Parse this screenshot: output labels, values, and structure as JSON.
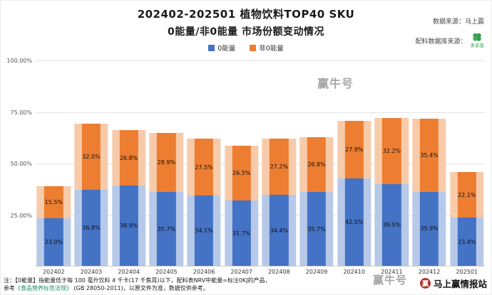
{
  "header": {
    "title_line1": "202402-202501 植物饮料TOP40 SKU",
    "title_line2": "0能量/非0能量 市场份额变动情况",
    "source_line1": "数据来源：马上赢",
    "source_line2": "配料数据库来源：",
    "source_logo_text": "多安普"
  },
  "chart_data": {
    "type": "bar",
    "stacked": true,
    "title": "202402-202501 植物饮料TOP40 SKU 0能量/非0能量 市场份额变动情况",
    "xlabel": "",
    "ylabel": "",
    "ylim": [
      0,
      100
    ],
    "grid": true,
    "legend_position": "top",
    "yticks": [
      "100.00%",
      "75.00%",
      "50.00%",
      "25.00%"
    ],
    "categories": [
      "202402",
      "202403",
      "202404",
      "202405",
      "202406",
      "202407",
      "202408",
      "202409",
      "202410",
      "202411",
      "202412",
      "202501"
    ],
    "series": [
      {
        "name": "0能量",
        "color": "#4472c4",
        "light_color": "#b7c9e8",
        "values": [
          23.0,
          36.8,
          38.9,
          35.7,
          34.1,
          31.7,
          34.4,
          35.7,
          42.5,
          39.5,
          35.9,
          23.4
        ]
      },
      {
        "name": "非0能量",
        "color": "#ed7d31",
        "light_color": "#f7cba9",
        "values": [
          15.5,
          32.0,
          26.8,
          28.9,
          27.5,
          26.5,
          27.2,
          26.8,
          27.9,
          32.2,
          35.4,
          22.1
        ]
      }
    ]
  },
  "footer": {
    "note_line1": "注：【0能量】指能量低于每 100 毫升饮料 4 千卡(17 千焦耳)以下，配料表NRV中能量=标注0KJ的产品，",
    "note_line2_prefix": "参考",
    "note_line2_link": "《食品营养标签法规》",
    "note_line2_suffix": " (GB 28050-2011)，以原文件为准，数据仅供参考。"
  },
  "watermark": {
    "text": "赢牛号"
  },
  "brand": {
    "name": "马上赢情报站",
    "icon_char": "赢"
  }
}
